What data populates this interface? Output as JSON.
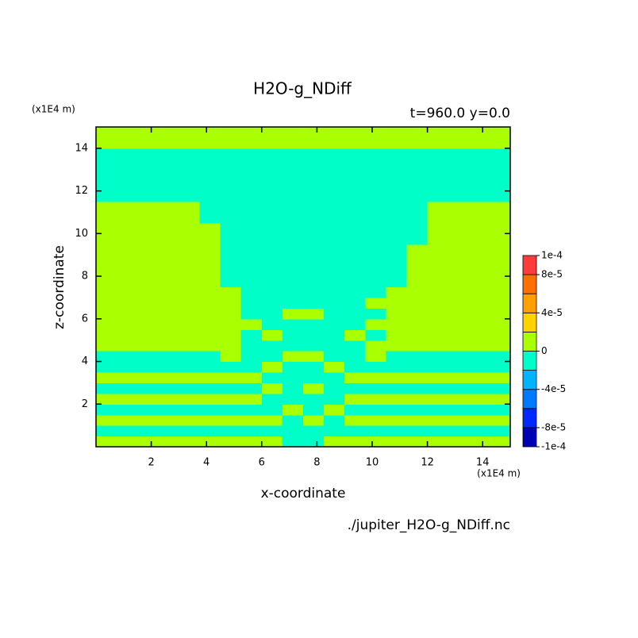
{
  "chart_data": {
    "type": "contour",
    "title": "H2O-g_NDiff",
    "subtitle": "t=960.0 y=0.0",
    "x_unit": "(x1E4 m)",
    "y_unit": "(x1E4 m)",
    "xlabel": "x-coordinate",
    "ylabel": "z-coordinate",
    "source": "./jupiter_H2O-g_NDiff.nc",
    "xlim": [
      0,
      15
    ],
    "ylim": [
      0,
      15
    ],
    "xticks": [
      2,
      4,
      6,
      8,
      10,
      12,
      14
    ],
    "yticks": [
      2,
      4,
      6,
      8,
      10,
      12,
      14
    ],
    "levels": [
      -0.0001,
      -8e-05,
      -6e-05,
      -4e-05,
      -2e-05,
      0,
      2e-05,
      4e-05,
      6e-05,
      8e-05,
      0.0001
    ],
    "colors": [
      "#0000b4",
      "#0028ff",
      "#0078ff",
      "#00b4ff",
      "#00ffc8",
      "#aaff00",
      "#ffd200",
      "#ffa000",
      "#ff6e00",
      "#ff3c3c"
    ],
    "colorbar_ticks": [
      {
        "value": 0.0001,
        "label": "1e-4"
      },
      {
        "value": 8e-05,
        "label": "8e-5"
      },
      {
        "value": 4e-05,
        "label": "4e-5"
      },
      0,
      {
        "value": -4e-05,
        "label": "-4e-5"
      },
      {
        "value": -8e-05,
        "label": "-8e-5"
      },
      {
        "value": -0.0001,
        "label": "-1e-4"
      }
    ],
    "x": [
      0.375,
      1.125,
      1.875,
      2.625,
      3.375,
      4.125,
      4.875,
      5.625,
      6.375,
      7.125,
      7.875,
      8.625,
      9.375,
      10.125,
      10.875,
      11.625,
      12.375,
      13.125,
      13.875,
      14.625
    ],
    "y": [
      0.25,
      0.75,
      1.25,
      1.75,
      2.25,
      2.75,
      3.25,
      3.75,
      4.25,
      4.75,
      5.25,
      5.75,
      6.25,
      6.75,
      7.25,
      7.75,
      8.25,
      8.75,
      9.25,
      9.75,
      10.25,
      10.75,
      11.25,
      11.75,
      12.25,
      12.75,
      13.25,
      13.75,
      14.25,
      14.75
    ],
    "values": [
      [
        1e-05,
        1e-05,
        1e-05,
        1e-05,
        1e-05,
        1e-05,
        1e-05,
        1e-05,
        1e-05,
        -1e-05,
        -1e-05,
        1e-05,
        1e-05,
        1e-05,
        1e-05,
        1e-05,
        1e-05,
        1e-05,
        1e-05,
        1e-05
      ],
      [
        -1e-05,
        -1e-05,
        -1e-05,
        -1e-05,
        -1e-05,
        -1e-05,
        -1e-05,
        -1e-05,
        -1e-05,
        -1e-05,
        -1e-05,
        -1e-05,
        -1e-05,
        -1e-05,
        -1e-05,
        -1e-05,
        -1e-05,
        -1e-05,
        -1e-05,
        -1e-05
      ],
      [
        1e-05,
        1e-05,
        1e-05,
        1e-05,
        1e-05,
        1e-05,
        1e-05,
        1e-05,
        1e-05,
        -1e-05,
        1e-05,
        -1e-05,
        1e-05,
        1e-05,
        1e-05,
        1e-05,
        1e-05,
        1e-05,
        1e-05,
        1e-05
      ],
      [
        -1e-05,
        -1e-05,
        -1e-05,
        -1e-05,
        -1e-05,
        -1e-05,
        -1e-05,
        -1e-05,
        -1e-05,
        1e-05,
        -1e-05,
        1e-05,
        -1e-05,
        -1e-05,
        -1e-05,
        -1e-05,
        -1e-05,
        -1e-05,
        -1e-05,
        -1e-05
      ],
      [
        1e-05,
        1e-05,
        1e-05,
        1e-05,
        1e-05,
        1e-05,
        1e-05,
        1e-05,
        -1e-05,
        -1e-05,
        -1e-05,
        -1e-05,
        1e-05,
        1e-05,
        1e-05,
        1e-05,
        1e-05,
        1e-05,
        1e-05,
        1e-05
      ],
      [
        -1e-05,
        -1e-05,
        -1e-05,
        -1e-05,
        -1e-05,
        -1e-05,
        -1e-05,
        -1e-05,
        1e-05,
        -1e-05,
        1e-05,
        -1e-05,
        -1e-05,
        -1e-05,
        -1e-05,
        -1e-05,
        -1e-05,
        -1e-05,
        -1e-05,
        -1e-05
      ],
      [
        1e-05,
        1e-05,
        1e-05,
        1e-05,
        1e-05,
        1e-05,
        1e-05,
        1e-05,
        -1e-05,
        -1e-05,
        -1e-05,
        -1e-05,
        1e-05,
        1e-05,
        1e-05,
        1e-05,
        1e-05,
        1e-05,
        1e-05,
        1e-05
      ],
      [
        -1e-05,
        -1e-05,
        -1e-05,
        -1e-05,
        -1e-05,
        -1e-05,
        -1e-05,
        -1e-05,
        1e-05,
        -1e-05,
        -1e-05,
        1e-05,
        -1e-05,
        -1e-05,
        -1e-05,
        -1e-05,
        -1e-05,
        -1e-05,
        -1e-05,
        -1e-05
      ],
      [
        -1e-05,
        -1e-05,
        -1e-05,
        -1e-05,
        -1e-05,
        -1e-05,
        1e-05,
        -1e-05,
        -1e-05,
        1e-05,
        1e-05,
        -1e-05,
        -1e-05,
        1e-05,
        -1e-05,
        -1e-05,
        -1e-05,
        -1e-05,
        -1e-05,
        -1e-05
      ],
      [
        1e-05,
        1e-05,
        1e-05,
        1e-05,
        1e-05,
        1e-05,
        1e-05,
        -1e-05,
        -1e-05,
        -1e-05,
        -1e-05,
        -1e-05,
        -1e-05,
        1e-05,
        1e-05,
        1e-05,
        1e-05,
        1e-05,
        1e-05,
        1e-05
      ],
      [
        1e-05,
        1e-05,
        1e-05,
        1e-05,
        1e-05,
        1e-05,
        1e-05,
        -1e-05,
        1e-05,
        -1e-05,
        -1e-05,
        -1e-05,
        1e-05,
        -1e-05,
        1e-05,
        1e-05,
        1e-05,
        1e-05,
        1e-05,
        1e-05
      ],
      [
        1e-05,
        1e-05,
        1e-05,
        1e-05,
        1e-05,
        1e-05,
        1e-05,
        1e-05,
        -1e-05,
        -1e-05,
        -1e-05,
        -1e-05,
        -1e-05,
        1e-05,
        1e-05,
        1e-05,
        1e-05,
        1e-05,
        1e-05,
        1e-05
      ],
      [
        1e-05,
        1e-05,
        1e-05,
        1e-05,
        1e-05,
        1e-05,
        1e-05,
        -1e-05,
        -1e-05,
        1e-05,
        1e-05,
        -1e-05,
        -1e-05,
        -1e-05,
        1e-05,
        1e-05,
        1e-05,
        1e-05,
        1e-05,
        1e-05
      ],
      [
        1e-05,
        1e-05,
        1e-05,
        1e-05,
        1e-05,
        1e-05,
        1e-05,
        -1e-05,
        -1e-05,
        -1e-05,
        -1e-05,
        -1e-05,
        -1e-05,
        1e-05,
        1e-05,
        1e-05,
        1e-05,
        1e-05,
        1e-05,
        1e-05
      ],
      [
        1e-05,
        1e-05,
        1e-05,
        1e-05,
        1e-05,
        1e-05,
        1e-05,
        -1e-05,
        -1e-05,
        -1e-05,
        -1e-05,
        -1e-05,
        -1e-05,
        -1e-05,
        1e-05,
        1e-05,
        1e-05,
        1e-05,
        1e-05,
        1e-05
      ],
      [
        1e-05,
        1e-05,
        1e-05,
        1e-05,
        1e-05,
        1e-05,
        -1e-05,
        -1e-05,
        -1e-05,
        -1e-05,
        -1e-05,
        -1e-05,
        -1e-05,
        -1e-05,
        -1e-05,
        1e-05,
        1e-05,
        1e-05,
        1e-05,
        1e-05
      ],
      [
        1e-05,
        1e-05,
        1e-05,
        1e-05,
        1e-05,
        1e-05,
        -1e-05,
        -1e-05,
        -1e-05,
        -1e-05,
        -1e-05,
        -1e-05,
        -1e-05,
        -1e-05,
        -1e-05,
        1e-05,
        1e-05,
        1e-05,
        1e-05,
        1e-05
      ],
      [
        1e-05,
        1e-05,
        1e-05,
        1e-05,
        1e-05,
        1e-05,
        -1e-05,
        -1e-05,
        -1e-05,
        -1e-05,
        -1e-05,
        -1e-05,
        -1e-05,
        -1e-05,
        -1e-05,
        1e-05,
        1e-05,
        1e-05,
        1e-05,
        1e-05
      ],
      [
        1e-05,
        1e-05,
        1e-05,
        1e-05,
        1e-05,
        1e-05,
        -1e-05,
        -1e-05,
        -1e-05,
        -1e-05,
        -1e-05,
        -1e-05,
        -1e-05,
        -1e-05,
        -1e-05,
        1e-05,
        1e-05,
        1e-05,
        1e-05,
        1e-05
      ],
      [
        1e-05,
        1e-05,
        1e-05,
        1e-05,
        1e-05,
        1e-05,
        -1e-05,
        -1e-05,
        -1e-05,
        -1e-05,
        -1e-05,
        -1e-05,
        -1e-05,
        -1e-05,
        -1e-05,
        -1e-05,
        1e-05,
        1e-05,
        1e-05,
        1e-05
      ],
      [
        1e-05,
        1e-05,
        1e-05,
        1e-05,
        1e-05,
        1e-05,
        -1e-05,
        -1e-05,
        -1e-05,
        -1e-05,
        -1e-05,
        -1e-05,
        -1e-05,
        -1e-05,
        -1e-05,
        -1e-05,
        1e-05,
        1e-05,
        1e-05,
        1e-05
      ],
      [
        1e-05,
        1e-05,
        1e-05,
        1e-05,
        1e-05,
        -1e-05,
        -1e-05,
        -1e-05,
        -1e-05,
        -1e-05,
        -1e-05,
        -1e-05,
        -1e-05,
        -1e-05,
        -1e-05,
        -1e-05,
        1e-05,
        1e-05,
        1e-05,
        1e-05
      ],
      [
        1e-05,
        1e-05,
        1e-05,
        1e-05,
        1e-05,
        -1e-05,
        -1e-05,
        -1e-05,
        -1e-05,
        -1e-05,
        -1e-05,
        -1e-05,
        -1e-05,
        -1e-05,
        -1e-05,
        -1e-05,
        1e-05,
        1e-05,
        1e-05,
        1e-05
      ],
      [
        -1e-05,
        -1e-05,
        -1e-05,
        -1e-05,
        -1e-05,
        -1e-05,
        -1e-05,
        -1e-05,
        -1e-05,
        -1e-05,
        -1e-05,
        -1e-05,
        -1e-05,
        -1e-05,
        -1e-05,
        -1e-05,
        -1e-05,
        -1e-05,
        -1e-05,
        -1e-05
      ],
      [
        -1e-05,
        -1e-05,
        -1e-05,
        -1e-05,
        -1e-05,
        -1e-05,
        -1e-05,
        -1e-05,
        -1e-05,
        -1e-05,
        -1e-05,
        -1e-05,
        -1e-05,
        -1e-05,
        -1e-05,
        -1e-05,
        -1e-05,
        -1e-05,
        -1e-05,
        -1e-05
      ],
      [
        -1e-05,
        -1e-05,
        -1e-05,
        -1e-05,
        -1e-05,
        -1e-05,
        -1e-05,
        -1e-05,
        -1e-05,
        -1e-05,
        -1e-05,
        -1e-05,
        -1e-05,
        -1e-05,
        -1e-05,
        -1e-05,
        -1e-05,
        -1e-05,
        -1e-05,
        -1e-05
      ],
      [
        -1e-05,
        -1e-05,
        -1e-05,
        -1e-05,
        -1e-05,
        -1e-05,
        -1e-05,
        -1e-05,
        -1e-05,
        -1e-05,
        -1e-05,
        -1e-05,
        -1e-05,
        -1e-05,
        -1e-05,
        -1e-05,
        -1e-05,
        -1e-05,
        -1e-05,
        -1e-05
      ],
      [
        -1e-05,
        -1e-05,
        -1e-05,
        -1e-05,
        -1e-05,
        -1e-05,
        -1e-05,
        -1e-05,
        -1e-05,
        -1e-05,
        -1e-05,
        -1e-05,
        -1e-05,
        -1e-05,
        -1e-05,
        -1e-05,
        -1e-05,
        -1e-05,
        -1e-05,
        -1e-05
      ],
      [
        1e-05,
        1e-05,
        1e-05,
        1e-05,
        1e-05,
        1e-05,
        1e-05,
        1e-05,
        1e-05,
        1e-05,
        1e-05,
        1e-05,
        1e-05,
        1e-05,
        1e-05,
        1e-05,
        1e-05,
        1e-05,
        1e-05,
        1e-05
      ],
      [
        1e-05,
        1e-05,
        1e-05,
        1e-05,
        1e-05,
        1e-05,
        1e-05,
        1e-05,
        1e-05,
        1e-05,
        1e-05,
        1e-05,
        1e-05,
        1e-05,
        1e-05,
        1e-05,
        1e-05,
        1e-05,
        1e-05,
        1e-05
      ]
    ]
  }
}
